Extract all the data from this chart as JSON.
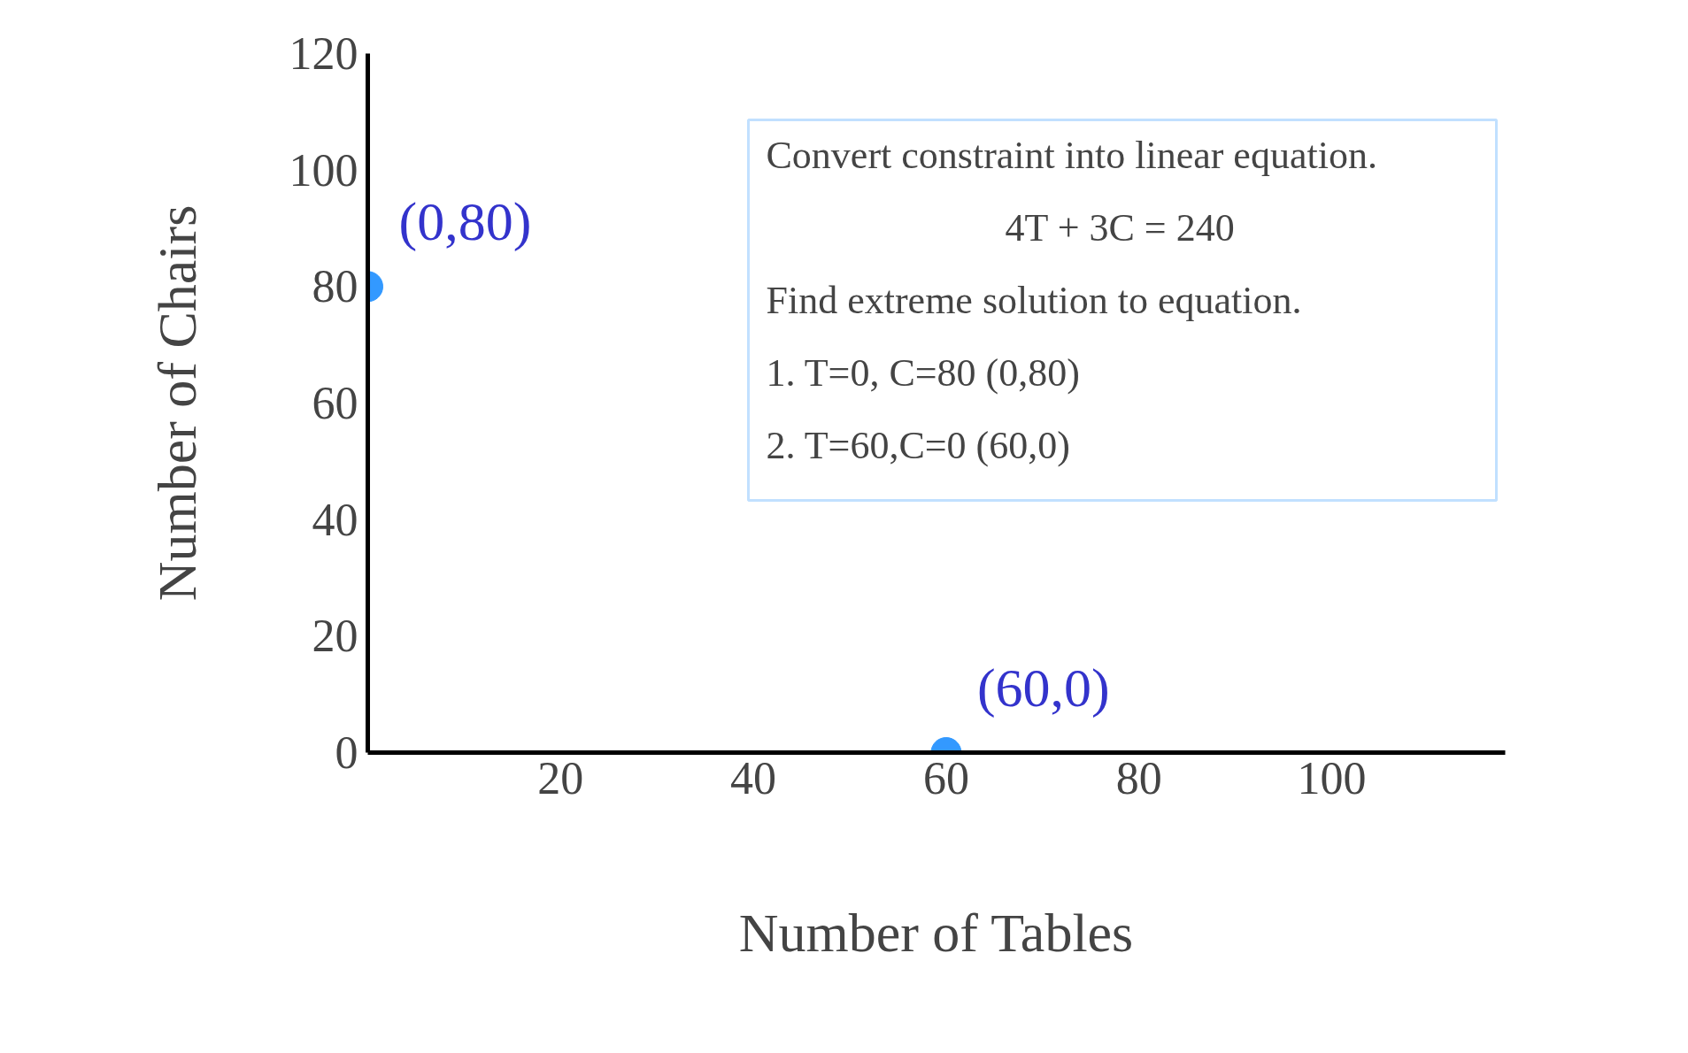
{
  "chart_data": {
    "type": "scatter",
    "xlabel": "Number of Tables",
    "ylabel": "Number of Chairs",
    "x": [
      0,
      60
    ],
    "series": [
      {
        "color": "#3399ff",
        "values": [
          80,
          0
        ]
      }
    ],
    "xlim": [
      0,
      118
    ],
    "ylim": [
      0,
      120
    ],
    "xticks": [
      20,
      40,
      60,
      80,
      100
    ],
    "yticks": [
      0,
      20,
      40,
      60,
      80,
      100,
      120
    ],
    "grid": false,
    "marker": "circle",
    "annotations": [
      {
        "text": "(0,80)",
        "x": 0,
        "y": 80
      },
      {
        "text": "(60,0)",
        "x": 60,
        "y": 0
      },
      "Convert constraint into linear equation.",
      "4T + 3C = 240",
      "Find extreme solution to equation.",
      "1.          T=0, C=80  (0,80)",
      "2.          T=60,C=0  (60,0)"
    ]
  }
}
